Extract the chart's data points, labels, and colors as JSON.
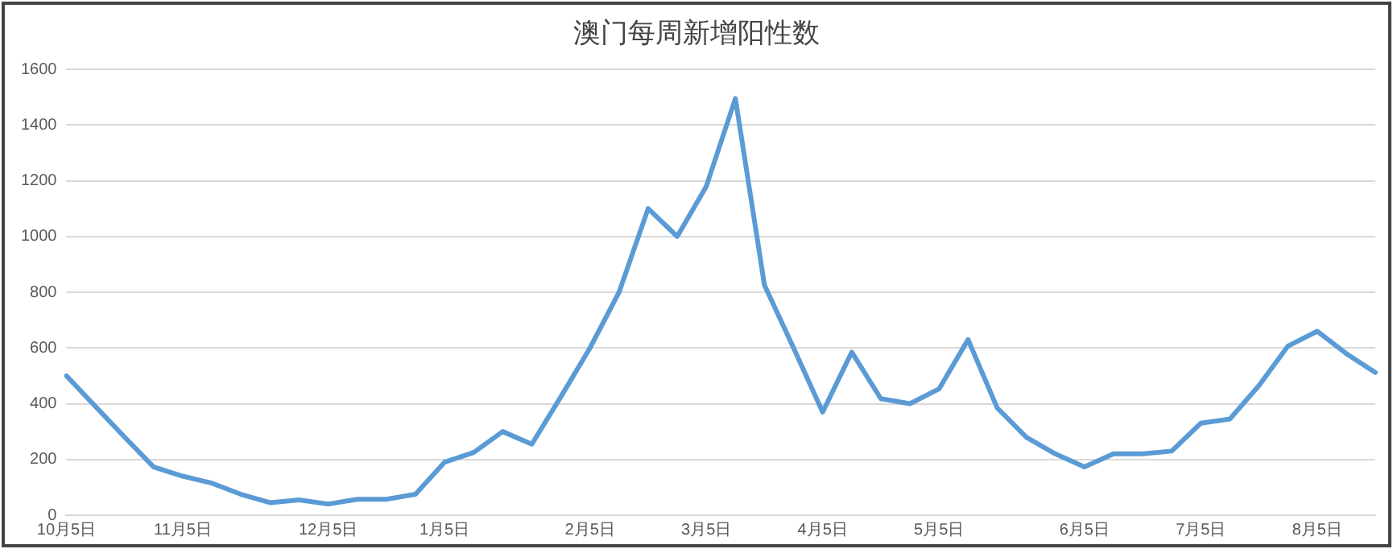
{
  "chart_data": {
    "type": "line",
    "title": "澳门每周新增阳性数",
    "categories": [
      "10月5日",
      null,
      null,
      null,
      "11月5日",
      null,
      null,
      null,
      null,
      "12月5日",
      null,
      null,
      null,
      "1月5日",
      null,
      null,
      null,
      null,
      "2月5日",
      null,
      null,
      null,
      "3月5日",
      null,
      null,
      null,
      "4月5日",
      null,
      null,
      null,
      "5月5日",
      null,
      null,
      null,
      null,
      "6月5日",
      null,
      null,
      null,
      "7月5日",
      null,
      null,
      null,
      "8月5日",
      null,
      null
    ],
    "series": [
      {
        "color": "#5b9bd5",
        "values": [
          500,
          390,
          280,
          173,
          140,
          115,
          75,
          45,
          55,
          40,
          57,
          57,
          75,
          190,
          225,
          300,
          255,
          425,
          600,
          800,
          1100,
          1000,
          1180,
          1495,
          825,
          600,
          370,
          585,
          418,
          400,
          453,
          630,
          385,
          280,
          220,
          173,
          220,
          220,
          230,
          330,
          345,
          465,
          607,
          660,
          580,
          512
        ]
      }
    ],
    "ylim": [
      0,
      1600
    ],
    "yticks": [
      0,
      200,
      400,
      600,
      800,
      1000,
      1200,
      1400,
      1600
    ],
    "grid": "y",
    "marker": "none",
    "line_style": "solid"
  }
}
